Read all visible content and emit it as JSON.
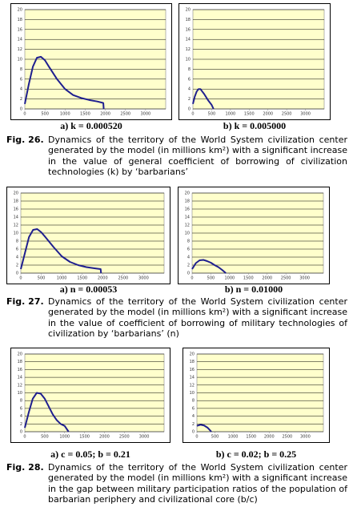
{
  "chart_data": [
    {
      "type": "line",
      "label": "a) k = 0.000520",
      "x": [
        0,
        100,
        200,
        300,
        400,
        500,
        600,
        800,
        1000,
        1200,
        1400,
        1600,
        1800,
        1950,
        1960
      ],
      "values": [
        1,
        5,
        8.5,
        10.3,
        10.5,
        9.8,
        8.5,
        6,
        4,
        2.8,
        2.2,
        1.8,
        1.5,
        1.2,
        0
      ],
      "color": "#1f1f8f",
      "xlim": [
        0,
        3500
      ],
      "ylim": [
        0,
        20
      ],
      "xticks": [
        0,
        500,
        1000,
        1500,
        2000,
        2500,
        3000
      ],
      "yticks": [
        0,
        2,
        4,
        6,
        8,
        10,
        12,
        14,
        16,
        18,
        20
      ],
      "grid": true
    },
    {
      "type": "line",
      "label": "b) k = 0.005000",
      "x": [
        0,
        50,
        100,
        150,
        200,
        250,
        300,
        400,
        500,
        550
      ],
      "values": [
        1,
        2.5,
        3.5,
        4,
        4,
        3.5,
        3,
        1.8,
        0.8,
        0
      ],
      "color": "#1f1f8f",
      "xlim": [
        0,
        3500
      ],
      "ylim": [
        0,
        20
      ],
      "xticks": [
        0,
        500,
        1000,
        1500,
        2000,
        2500,
        3000
      ],
      "yticks": [
        0,
        2,
        4,
        6,
        8,
        10,
        12,
        14,
        16,
        18,
        20
      ],
      "grid": true
    },
    {
      "type": "line",
      "label": "a) n = 0.00053",
      "x": [
        0,
        100,
        200,
        300,
        400,
        500,
        600,
        800,
        1000,
        1200,
        1400,
        1600,
        1800,
        1950,
        1960
      ],
      "values": [
        1,
        5,
        9,
        10.8,
        11,
        10.2,
        9,
        6.5,
        4.2,
        2.8,
        2,
        1.5,
        1.2,
        1,
        0
      ],
      "color": "#1f1f8f",
      "xlim": [
        0,
        3500
      ],
      "ylim": [
        0,
        20
      ],
      "xticks": [
        0,
        500,
        1000,
        1500,
        2000,
        2500,
        3000
      ],
      "yticks": [
        0,
        2,
        4,
        6,
        8,
        10,
        12,
        14,
        16,
        18,
        20
      ],
      "grid": true
    },
    {
      "type": "line",
      "label": "b) n = 0.01000",
      "x": [
        0,
        100,
        200,
        300,
        400,
        500,
        600,
        700,
        800,
        900
      ],
      "values": [
        1,
        2.5,
        3.2,
        3.3,
        3,
        2.6,
        2,
        1.5,
        0.8,
        0
      ],
      "color": "#1f1f8f",
      "xlim": [
        0,
        3500
      ],
      "ylim": [
        0,
        20
      ],
      "xticks": [
        0,
        500,
        1000,
        1500,
        2000,
        2500,
        3000
      ],
      "yticks": [
        0,
        2,
        4,
        6,
        8,
        10,
        12,
        14,
        16,
        18,
        20
      ],
      "grid": true
    },
    {
      "type": "line",
      "label": "a) c = 0.05; b = 0.21",
      "x": [
        0,
        100,
        200,
        300,
        400,
        500,
        600,
        700,
        800,
        900,
        1000,
        1100
      ],
      "values": [
        1,
        5,
        8.5,
        10,
        9.8,
        8.5,
        6.5,
        4.5,
        3,
        2,
        1.5,
        0
      ],
      "color": "#1f1f8f",
      "xlim": [
        0,
        3500
      ],
      "ylim": [
        0,
        20
      ],
      "xticks": [
        0,
        500,
        1000,
        1500,
        2000,
        2500,
        3000
      ],
      "yticks": [
        0,
        2,
        4,
        6,
        8,
        10,
        12,
        14,
        16,
        18,
        20
      ],
      "grid": true
    },
    {
      "type": "line",
      "label": "b) c = 0.02; b = 0.25",
      "x": [
        0,
        100,
        200,
        300,
        400
      ],
      "values": [
        1.5,
        1.8,
        1.6,
        1,
        0
      ],
      "color": "#1f1f8f",
      "xlim": [
        0,
        3500
      ],
      "ylim": [
        0,
        20
      ],
      "xticks": [
        0,
        500,
        1000,
        1500,
        2000,
        2500,
        3000
      ],
      "yticks": [
        0,
        2,
        4,
        6,
        8,
        10,
        12,
        14,
        16,
        18,
        20
      ],
      "grid": true
    }
  ],
  "figures": [
    {
      "number": "Fig. 26.",
      "text": "Dynamics of the territory of the World System civilization center generated by the model (in millions km²) with a significant increase in the value of general coefficient of borrowing of civilization technologies (k) by ‘barbarians’"
    },
    {
      "number": "Fig. 27.",
      "text": "Dynamics of the territory of the World System civilization center generated by the model (in millions km²) with a significant increase in the value of coefficient of borrowing of military technologies of civilization by ‘barbarians’ (n)"
    },
    {
      "number": "Fig. 28.",
      "text": "Dynamics of the territory of the World System civilization center generated by the model (in millions km²) with a significant increase in the gap between military participation ratios of the population of barbarian periphery and civilizational core (b/c)"
    }
  ]
}
